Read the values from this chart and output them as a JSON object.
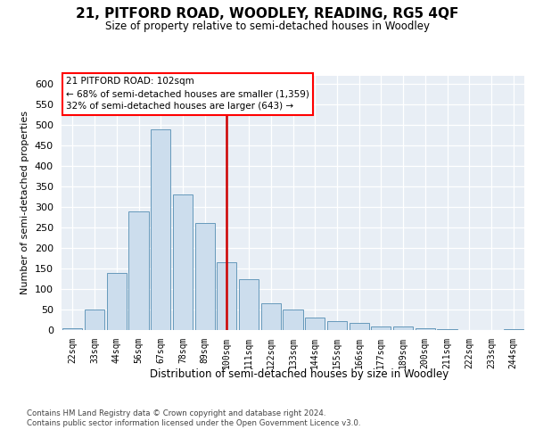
{
  "title": "21, PITFORD ROAD, WOODLEY, READING, RG5 4QF",
  "subtitle": "Size of property relative to semi-detached houses in Woodley",
  "xlabel": "Distribution of semi-detached houses by size in Woodley",
  "ylabel": "Number of semi-detached properties",
  "bin_labels": [
    "22sqm",
    "33sqm",
    "44sqm",
    "56sqm",
    "67sqm",
    "78sqm",
    "89sqm",
    "100sqm",
    "111sqm",
    "122sqm",
    "133sqm",
    "144sqm",
    "155sqm",
    "166sqm",
    "177sqm",
    "189sqm",
    "200sqm",
    "211sqm",
    "222sqm",
    "233sqm",
    "244sqm"
  ],
  "bar_values": [
    5,
    50,
    140,
    290,
    490,
    330,
    260,
    165,
    125,
    65,
    50,
    30,
    22,
    18,
    8,
    8,
    5,
    2,
    1,
    1,
    2
  ],
  "bar_color": "#ccdded",
  "bar_edge_color": "#6699bb",
  "vline_color": "#cc0000",
  "vline_position": 7,
  "annotation_line1": "21 PITFORD ROAD: 102sqm",
  "annotation_line2": "← 68% of semi-detached houses are smaller (1,359)",
  "annotation_line3": "32% of semi-detached houses are larger (643) →",
  "ylim": [
    0,
    620
  ],
  "yticks": [
    0,
    50,
    100,
    150,
    200,
    250,
    300,
    350,
    400,
    450,
    500,
    550,
    600
  ],
  "bg_color": "#e8eef5",
  "grid_color": "#ffffff",
  "footer1": "Contains HM Land Registry data © Crown copyright and database right 2024.",
  "footer2": "Contains public sector information licensed under the Open Government Licence v3.0."
}
